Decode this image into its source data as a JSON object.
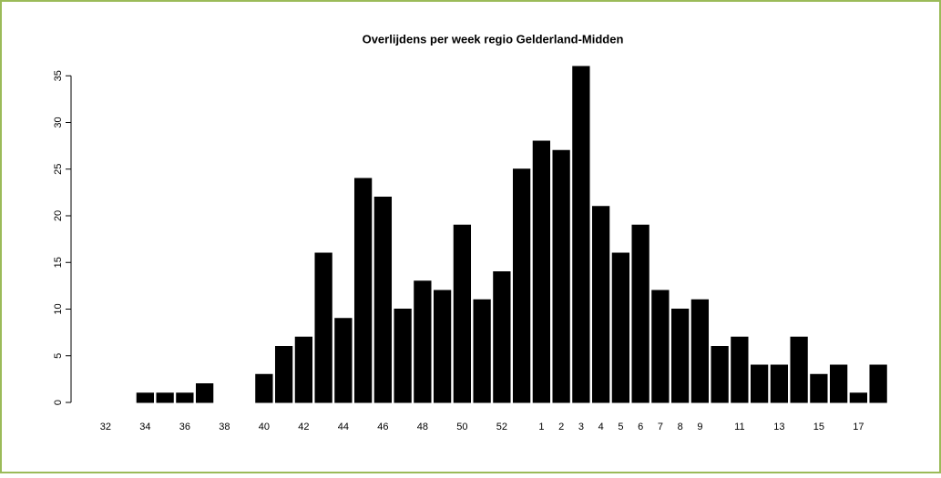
{
  "chart_data": {
    "type": "bar",
    "title": "Overlijdens per week regio Gelderland-Midden",
    "categories": [
      "32",
      null,
      "34",
      null,
      "36",
      null,
      "38",
      null,
      "40",
      null,
      "42",
      null,
      "44",
      null,
      "46",
      null,
      "48",
      null,
      "50",
      null,
      "52",
      null,
      "1",
      "2",
      "3",
      "4",
      "5",
      "6",
      "7",
      "8",
      "9",
      null,
      "11",
      null,
      "13",
      null,
      "15",
      null,
      "17",
      null
    ],
    "values": [
      0,
      0,
      1,
      1,
      1,
      2,
      0,
      0,
      3,
      6,
      7,
      16,
      9,
      24,
      22,
      10,
      13,
      12,
      19,
      11,
      14,
      25,
      28,
      27,
      36,
      21,
      16,
      19,
      12,
      10,
      11,
      6,
      7,
      4,
      4,
      7,
      3,
      4,
      1,
      4
    ],
    "color": "#000000",
    "ylim": [
      0,
      36
    ],
    "yticks": [
      0,
      5,
      10,
      15,
      20,
      25,
      30,
      35
    ],
    "grid": false
  }
}
